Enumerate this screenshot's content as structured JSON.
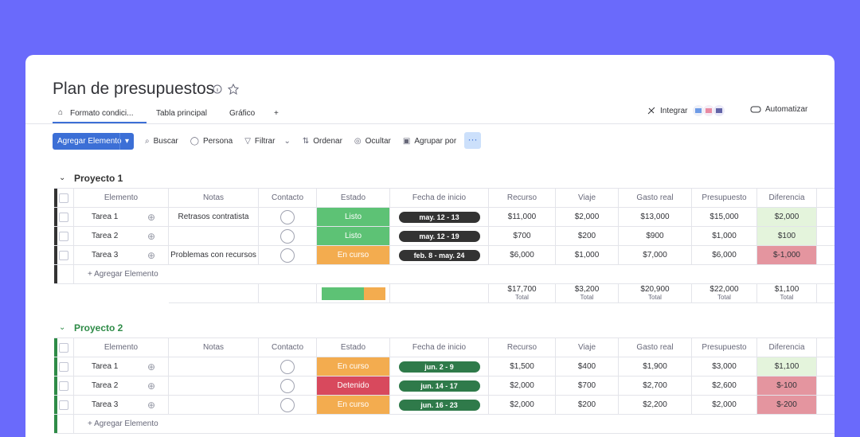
{
  "header": {
    "title": "Plan de presupuestos"
  },
  "tabs": [
    "Formato condici...",
    "Tabla principal",
    "Gráfico",
    "+"
  ],
  "top_actions": {
    "integrate": "Integrar",
    "automate": "Automatizar"
  },
  "toolbar": {
    "new_item": "Agregar Elemento",
    "actions": [
      "Buscar",
      "Persona",
      "Filtrar",
      "Ordenar",
      "Ocultar",
      "Agrupar por"
    ]
  },
  "columns": [
    "Elemento",
    "Notas",
    "Contacto",
    "Estado",
    "Fecha de inicio",
    "Recurso",
    "Viaje",
    "Gasto real",
    "Presupuesto",
    "Diferencia"
  ],
  "groups": [
    {
      "name": "Proyecto 1",
      "color": "#333333",
      "date_color": "#333333",
      "add_item": "+ Agregar Elemento",
      "rows": [
        {
          "item": "Tarea 1",
          "notes": "Retrasos contratista",
          "status": {
            "label": "Listo",
            "color": "#5dc275"
          },
          "date": "may. 12 - 13",
          "recurso": "$11,000",
          "viaje": "$2,000",
          "gasto": "$13,000",
          "presupuesto": "$15,000",
          "diferencia": {
            "label": "$2,000",
            "color": "#e4f4dc"
          }
        },
        {
          "item": "Tarea 2",
          "notes": "",
          "status": {
            "label": "Listo",
            "color": "#5dc275"
          },
          "date": "may. 12 - 19",
          "recurso": "$700",
          "viaje": "$200",
          "gasto": "$900",
          "presupuesto": "$1,000",
          "diferencia": {
            "label": "$100",
            "color": "#e4f4dc"
          }
        },
        {
          "item": "Tarea 3",
          "notes": "Problemas con recursos",
          "status": {
            "label": "En curso",
            "color": "#f3ac4f"
          },
          "date": "feb. 8 - may. 24",
          "recurso": "$6,000",
          "viaje": "$1,000",
          "gasto": "$7,000",
          "presupuesto": "$6,000",
          "diferencia": {
            "label": "$-1,000",
            "color": "#e4959f"
          }
        }
      ],
      "totals": {
        "recurso": {
          "value": "$17,700",
          "label": "Total"
        },
        "viaje": {
          "value": "$3,200",
          "label": "Total"
        },
        "gasto": {
          "value": "$20,900",
          "label": "Total"
        },
        "presupuesto": {
          "value": "$22,000",
          "label": "Total"
        },
        "diferencia": {
          "value": "$1,100",
          "label": "Total"
        }
      }
    },
    {
      "name": "Proyecto 2",
      "color": "#2e8b47",
      "date_color": "#2f7a4a",
      "add_item": "+ Agregar Elemento",
      "rows": [
        {
          "item": "Tarea 1",
          "notes": "",
          "status": {
            "label": "En curso",
            "color": "#f3ac4f"
          },
          "date": "jun. 2 - 9",
          "recurso": "$1,500",
          "viaje": "$400",
          "gasto": "$1,900",
          "presupuesto": "$3,000",
          "diferencia": {
            "label": "$1,100",
            "color": "#e4f4dc"
          }
        },
        {
          "item": "Tarea 2",
          "notes": "",
          "status": {
            "label": "Detenido",
            "color": "#d8495d"
          },
          "date": "jun. 14 - 17",
          "recurso": "$2,000",
          "viaje": "$700",
          "gasto": "$2,700",
          "presupuesto": "$2,600",
          "diferencia": {
            "label": "$-100",
            "color": "#e4959f"
          }
        },
        {
          "item": "Tarea 3",
          "notes": "",
          "status": {
            "label": "En curso",
            "color": "#f3ac4f"
          },
          "date": "jun. 16 - 23",
          "recurso": "$2,000",
          "viaje": "$200",
          "gasto": "$2,200",
          "presupuesto": "$2,000",
          "diferencia": {
            "label": "$-200",
            "color": "#e4959f"
          }
        }
      ]
    }
  ]
}
